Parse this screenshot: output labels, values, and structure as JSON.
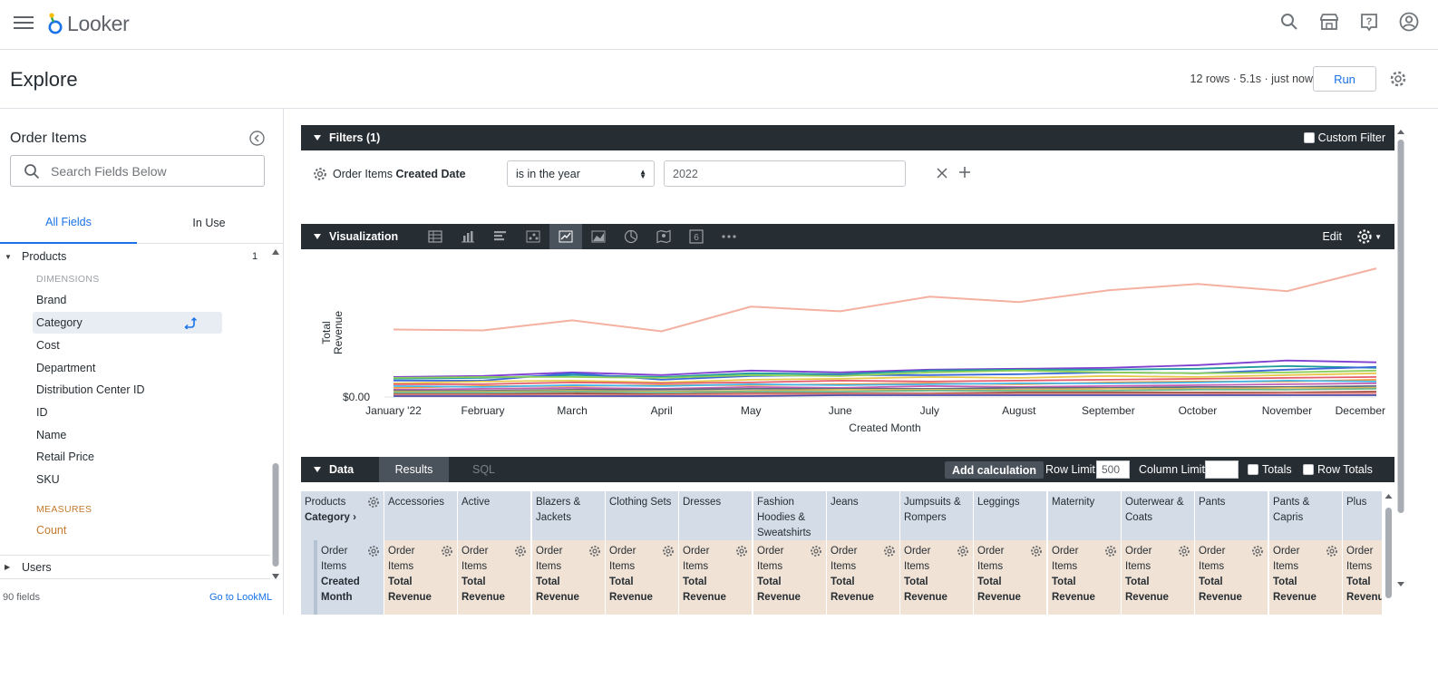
{
  "app": {
    "name": "Looker",
    "brand_color": "#1a73e8"
  },
  "topbar": {
    "icons": [
      "menu-icon",
      "search-icon",
      "marketplace-icon",
      "help-icon",
      "account-icon"
    ]
  },
  "header": {
    "title": "Explore",
    "run_info": "12 rows · 5.1s · just now",
    "run_label": "Run"
  },
  "sidebar": {
    "title": "Order Items",
    "search_placeholder": "Search Fields Below",
    "tabs": [
      "All Fields",
      "In Use"
    ],
    "group": {
      "name": "Products",
      "count": "1"
    },
    "dimensions_label": "DIMENSIONS",
    "dimensions": [
      "Brand",
      "Category",
      "Cost",
      "Department",
      "Distribution Center ID",
      "ID",
      "Name",
      "Retail Price",
      "SKU"
    ],
    "selected_field": "Category",
    "measures_label": "MEASURES",
    "measures": [
      "Count"
    ],
    "users_group": "Users",
    "fields_count": "90 fields",
    "go_lookml": "Go to LookML"
  },
  "filters": {
    "title": "Filters (1)",
    "custom_filter": "Custom Filter",
    "field_prefix": "Order Items",
    "field_name": "Created Date",
    "operator": "is in the year",
    "value": "2022"
  },
  "visualization": {
    "title": "Visualization",
    "edit_label": "Edit",
    "icons": [
      "table-icon",
      "column-chart-icon",
      "bar-chart-icon",
      "scatter-chart-icon",
      "line-chart-icon",
      "area-chart-icon",
      "pie-chart-icon",
      "map-icon",
      "single-value-icon",
      "more-icon"
    ],
    "active_icon": "line-chart-icon"
  },
  "chart_data": {
    "type": "line",
    "x": [
      "January '22",
      "February",
      "March",
      "April",
      "May",
      "June",
      "July",
      "August",
      "September",
      "October",
      "November",
      "December"
    ],
    "xlabel": "Created Month",
    "ylabel": "Total Revenue",
    "y_tick": "$0.00",
    "series": [
      {
        "color": "#f4b0a0",
        "values": [
          74,
          73,
          84,
          72,
          99,
          94,
          110,
          104,
          117,
          124,
          116,
          141
        ]
      },
      {
        "color": "#7e3fd0",
        "values": [
          22,
          23,
          27,
          24,
          29,
          27,
          30,
          31,
          32,
          35,
          40,
          38
        ]
      },
      {
        "color": "#1f9c9c",
        "values": [
          20,
          21,
          24,
          22,
          26,
          25,
          29,
          30,
          30,
          31,
          34,
          32
        ]
      },
      {
        "color": "#3b6ad8",
        "values": [
          18,
          18,
          26,
          19,
          23,
          24,
          24,
          25,
          27,
          26,
          30,
          33
        ]
      },
      {
        "color": "#8ccf5a",
        "values": [
          21,
          22,
          22,
          21,
          24,
          23,
          27,
          29,
          27,
          26,
          27,
          29
        ]
      },
      {
        "color": "#e6c84a",
        "values": [
          15,
          17,
          18,
          16,
          19,
          20,
          22,
          21,
          23,
          22,
          24,
          26
        ]
      },
      {
        "color": "#e35d6a",
        "values": [
          14,
          14,
          16,
          15,
          16,
          18,
          17,
          18,
          19,
          20,
          21,
          22
        ]
      },
      {
        "color": "#f29a3b",
        "values": [
          10,
          12,
          12,
          13,
          13,
          14,
          15,
          14,
          16,
          17,
          17,
          19
        ]
      },
      {
        "color": "#45b6e8",
        "values": [
          12,
          11,
          13,
          12,
          14,
          13,
          14,
          15,
          15,
          16,
          18,
          17
        ]
      },
      {
        "color": "#c15fb0",
        "values": [
          8,
          9,
          10,
          9,
          11,
          10,
          12,
          11,
          12,
          13,
          14,
          15
        ]
      },
      {
        "color": "#5a6b7d",
        "values": [
          7,
          7,
          8,
          8,
          9,
          9,
          9,
          10,
          10,
          11,
          11,
          12
        ]
      },
      {
        "color": "#d8b85c",
        "values": [
          6,
          6,
          7,
          6,
          7,
          8,
          8,
          8,
          9,
          9,
          10,
          10
        ]
      },
      {
        "color": "#6fb58a",
        "values": [
          5,
          5,
          6,
          5,
          6,
          6,
          7,
          7,
          7,
          8,
          8,
          9
        ]
      },
      {
        "color": "#a04a3c",
        "values": [
          3,
          3,
          4,
          3,
          4,
          4,
          4,
          5,
          5,
          5,
          5,
          6
        ]
      },
      {
        "color": "#e88c8c",
        "values": [
          2,
          2,
          2,
          2,
          3,
          3,
          3,
          3,
          3,
          3,
          4,
          4
        ]
      },
      {
        "color": "#4b4fa8",
        "values": [
          1,
          1,
          1,
          1,
          1,
          2,
          2,
          2,
          2,
          2,
          2,
          2
        ]
      }
    ]
  },
  "data_panel": {
    "title": "Data",
    "tabs": [
      "Results",
      "SQL"
    ],
    "add_calculation": "Add calculation",
    "row_limit_label": "Row Limit",
    "row_limit_value": "500",
    "column_limit_label": "Column Limit",
    "column_limit_value": "",
    "totals_label": "Totals",
    "row_totals_label": "Row Totals"
  },
  "table": {
    "pivot_header_1": "Products",
    "pivot_header_2": "Category",
    "row_header_lines": [
      "Order",
      "Items",
      "Created",
      "Month"
    ],
    "measure_lines": [
      "Order",
      "Items",
      "Total",
      "Revenue"
    ],
    "columns": [
      "Accessories",
      "Active",
      "Blazers & Jackets",
      "Clothing Sets",
      "Dresses",
      "Fashion Hoodies & Sweatshirts",
      "Jeans",
      "Jumpsuits & Rompers",
      "Leggings",
      "Maternity",
      "Outerwear & Coats",
      "Pants",
      "Pants & Capris",
      "Plus"
    ]
  }
}
